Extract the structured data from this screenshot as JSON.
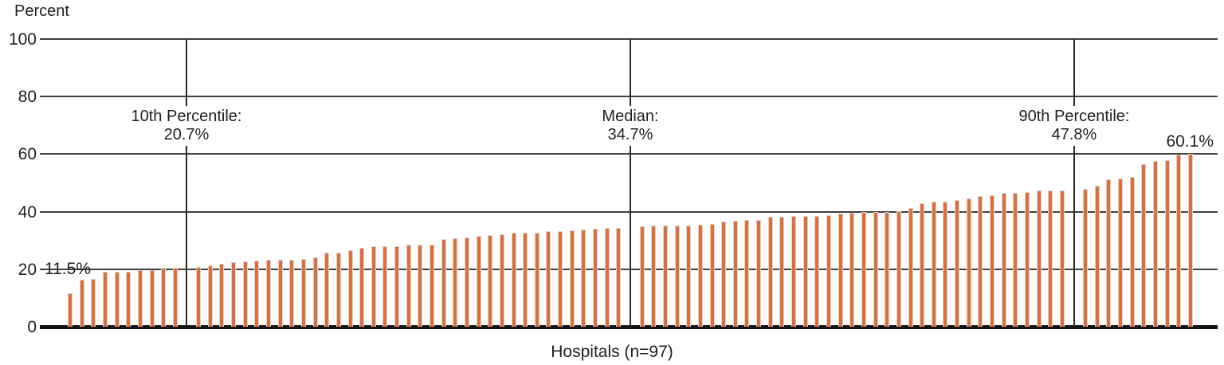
{
  "chart_data": {
    "type": "bar",
    "title": "",
    "ylabel": "Percent",
    "xlabel": "Hospitals (n=97)",
    "ylim": [
      0,
      100
    ],
    "yticks": [
      0,
      20,
      40,
      60,
      80,
      100
    ],
    "grid": "horizontal",
    "bar_color": "#de6f3b",
    "n": 97,
    "values": [
      11.5,
      16.4,
      16.6,
      19.0,
      19.1,
      19.2,
      19.7,
      19.8,
      20.5,
      20.6,
      20.7,
      20.8,
      21.3,
      22.0,
      22.4,
      22.8,
      22.9,
      23.2,
      23.3,
      23.3,
      23.5,
      24.0,
      25.7,
      25.9,
      26.6,
      27.5,
      28.0,
      28.1,
      28.1,
      28.4,
      28.5,
      28.6,
      30.5,
      30.7,
      31.0,
      31.6,
      31.9,
      32.2,
      32.6,
      32.6,
      32.7,
      33.2,
      33.3,
      33.5,
      33.8,
      34.1,
      34.4,
      34.4,
      34.7,
      34.8,
      35.1,
      35.2,
      35.3,
      35.3,
      35.4,
      35.8,
      36.5,
      36.8,
      37.0,
      37.0,
      38.1,
      38.3,
      38.4,
      38.4,
      38.6,
      38.8,
      39.2,
      39.5,
      39.8,
      40.0,
      40.0,
      40.1,
      41.3,
      42.9,
      43.4,
      43.6,
      44.0,
      44.5,
      45.4,
      45.8,
      46.4,
      46.6,
      46.9,
      47.3,
      47.3,
      47.5,
      47.8,
      47.9,
      48.9,
      51.2,
      51.5,
      52.2,
      56.6,
      57.7,
      58.0,
      59.8,
      60.1
    ],
    "annotations": {
      "min_label": "11.5%",
      "max_label": "60.1%",
      "p10": {
        "line1": "10th Percentile:",
        "line2": "20.7%",
        "bar_index": 11
      },
      "median": {
        "line1": "Median:",
        "line2": "34.7%",
        "bar_index": 49
      },
      "p90": {
        "line1": "90th Percentile:",
        "line2": "47.8%",
        "bar_index": 87
      }
    }
  }
}
